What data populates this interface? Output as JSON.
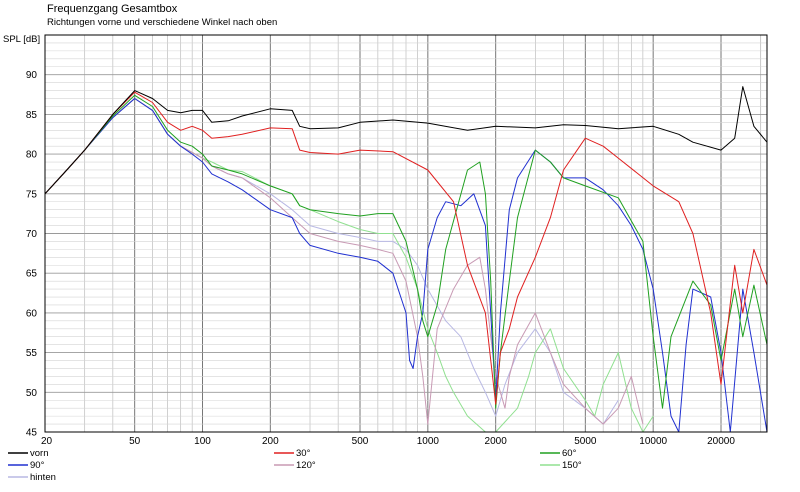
{
  "chart_data": {
    "type": "line",
    "title": "Frequenzgang Gesamtbox",
    "subtitle": "Richtungen vorne und verschiedene Winkel nach oben",
    "ylabel": "SPL [dB]",
    "xlabel": "",
    "x_scale": "log",
    "xlim": [
      20,
      32000
    ],
    "ylim": [
      45,
      95
    ],
    "grid": true,
    "x_ticks": [
      20,
      50,
      100,
      200,
      500,
      1000,
      2000,
      5000,
      10000,
      20000
    ],
    "x_tick_labels": [
      "20",
      "50",
      "100",
      "200",
      "500",
      "1000",
      "2000",
      "5000",
      "10000",
      "20000"
    ],
    "y_ticks": [
      45,
      50,
      55,
      60,
      65,
      70,
      75,
      80,
      85,
      90
    ],
    "y_tick_labels": [
      "45",
      "50",
      "55",
      "60",
      "65",
      "70",
      "75",
      "80",
      "85",
      "90"
    ],
    "legend_position": "bottom",
    "series": [
      {
        "name": "vorn",
        "color": "#000000",
        "x": [
          20,
          25,
          30,
          40,
          50,
          60,
          70,
          80,
          90,
          100,
          110,
          130,
          150,
          200,
          250,
          270,
          300,
          400,
          500,
          700,
          1000,
          1500,
          2000,
          3000,
          4000,
          5000,
          7000,
          10000,
          13000,
          15000,
          20000,
          23000,
          25000,
          28000,
          32000
        ],
        "y": [
          75,
          78,
          80.5,
          85,
          88,
          87,
          85.5,
          85.2,
          85.5,
          85.5,
          84,
          84.2,
          84.8,
          85.7,
          85.5,
          83.5,
          83.2,
          83.3,
          84,
          84.3,
          83.9,
          83,
          83.5,
          83.3,
          83.7,
          83.6,
          83.2,
          83.5,
          82.5,
          81.5,
          80.5,
          82,
          88.5,
          83.5,
          81.5
        ]
      },
      {
        "name": "30°",
        "color": "#e02020",
        "x": [
          20,
          25,
          30,
          40,
          50,
          60,
          70,
          80,
          90,
          100,
          110,
          130,
          150,
          200,
          250,
          270,
          300,
          400,
          500,
          700,
          1000,
          1300,
          1500,
          1800,
          2000,
          2100,
          2300,
          2500,
          3000,
          3500,
          4000,
          5000,
          6000,
          7000,
          10000,
          13000,
          15000,
          18000,
          20000,
          23000,
          25000,
          28000,
          32000
        ],
        "y": [
          75,
          78,
          80.5,
          85,
          87.8,
          86.5,
          84,
          83,
          83.5,
          83,
          82,
          82.2,
          82.5,
          83.3,
          83.2,
          80.5,
          80.2,
          80,
          80.5,
          80.3,
          78,
          74,
          66,
          60,
          48.5,
          55,
          58,
          62,
          67,
          72,
          78,
          82,
          81,
          79.5,
          76,
          74,
          70,
          60,
          51,
          66,
          60,
          68,
          63.5
        ]
      },
      {
        "name": "60°",
        "color": "#20a020",
        "x": [
          20,
          25,
          30,
          40,
          50,
          60,
          70,
          80,
          90,
          100,
          110,
          130,
          150,
          200,
          250,
          270,
          300,
          400,
          500,
          600,
          700,
          800,
          900,
          950,
          1000,
          1100,
          1200,
          1500,
          1700,
          1800,
          1900,
          2000,
          2100,
          2300,
          2500,
          3000,
          3500,
          4000,
          5000,
          7000,
          9000,
          10000,
          11000,
          12000,
          15000,
          18000,
          20000,
          23000,
          25000,
          28000,
          32000
        ],
        "y": [
          75,
          78,
          80.5,
          84.8,
          87.4,
          86,
          83,
          81.5,
          81,
          80,
          78.5,
          78,
          77.5,
          76,
          75,
          73.5,
          73,
          72.5,
          72.2,
          72.5,
          72.5,
          69,
          63,
          59,
          57,
          61,
          68,
          78,
          79,
          75,
          64,
          48,
          55,
          64,
          72,
          80.5,
          79,
          77,
          76,
          74.5,
          69,
          57,
          48,
          57,
          64,
          61,
          54,
          63,
          57,
          63.5,
          56
        ]
      },
      {
        "name": "90°",
        "color": "#2030d0",
        "x": [
          20,
          25,
          30,
          40,
          50,
          60,
          70,
          80,
          90,
          100,
          110,
          130,
          150,
          200,
          250,
          270,
          300,
          400,
          500,
          600,
          700,
          800,
          830,
          860,
          900,
          950,
          1000,
          1100,
          1200,
          1400,
          1600,
          1800,
          1900,
          2000,
          2100,
          2300,
          2500,
          3000,
          3500,
          4000,
          5000,
          6000,
          7000,
          8000,
          9000,
          10000,
          11000,
          12000,
          13000,
          14000,
          15000,
          18000,
          20000,
          22000,
          25000,
          28000,
          32000
        ],
        "y": [
          75,
          78,
          80.5,
          84.6,
          87,
          85.5,
          82.5,
          81,
          80,
          79,
          77.5,
          76.5,
          75.5,
          73,
          72,
          70,
          68.5,
          67.5,
          67,
          66.5,
          65,
          60,
          54,
          53,
          57,
          60,
          68,
          72,
          74,
          73.5,
          75,
          71,
          60,
          49,
          60,
          73,
          77,
          80.5,
          79,
          77,
          77,
          75.5,
          73.5,
          71,
          68,
          63,
          55,
          47,
          45,
          56,
          63,
          62,
          55,
          45,
          63,
          55,
          45
        ]
      },
      {
        "name": "120°",
        "color": "#c89ab4",
        "x": [
          20,
          25,
          30,
          40,
          50,
          60,
          70,
          80,
          90,
          100,
          110,
          130,
          150,
          200,
          250,
          300,
          400,
          500,
          600,
          700,
          800,
          900,
          950,
          1000,
          1100,
          1300,
          1500,
          1700,
          1800,
          1900,
          2000,
          2100,
          2200,
          2300,
          2500,
          3000,
          3500,
          4000,
          5000,
          6000,
          7000,
          8000,
          9000
        ],
        "y": [
          75,
          78,
          80.5,
          84.6,
          87,
          85.5,
          82.5,
          81,
          80.2,
          79.5,
          78.5,
          77.5,
          77,
          74.5,
          72,
          70,
          69,
          68.5,
          68,
          67.5,
          64,
          57,
          52,
          46,
          58,
          63,
          66,
          67,
          63,
          57,
          52,
          50,
          48,
          52,
          56,
          60,
          55,
          51,
          48,
          46,
          48,
          52,
          46
        ]
      },
      {
        "name": "150°",
        "color": "#90e090",
        "x": [
          20,
          25,
          30,
          40,
          50,
          60,
          70,
          80,
          90,
          100,
          110,
          130,
          150,
          200,
          250,
          270,
          300,
          400,
          500,
          600,
          700,
          800,
          900,
          1000,
          1100,
          1200,
          1300,
          1500,
          1800,
          2000,
          2500,
          2800,
          3000,
          3500,
          4000,
          5000,
          5500,
          6000,
          7000,
          8000,
          9000,
          10000
        ],
        "y": [
          75,
          78,
          80.5,
          84.6,
          87,
          85.5,
          82.5,
          81,
          80.2,
          79.5,
          79,
          78,
          77.8,
          76,
          75,
          73.5,
          73,
          71.5,
          70.5,
          70,
          70,
          67,
          63,
          58,
          55,
          52,
          50,
          47,
          45,
          45,
          48,
          52,
          55,
          58,
          53,
          49,
          47,
          51,
          55,
          48,
          45,
          47
        ]
      },
      {
        "name": "hinten",
        "color": "#b8b8e4",
        "x": [
          20,
          25,
          30,
          40,
          50,
          60,
          70,
          80,
          90,
          100,
          110,
          130,
          150,
          200,
          250,
          300,
          400,
          500,
          600,
          700,
          800,
          900,
          1000,
          1200,
          1400,
          1600,
          1800,
          2000,
          2200,
          2500,
          3000,
          3500,
          4000,
          5000,
          6000,
          7000
        ],
        "y": [
          75,
          78,
          80.5,
          84.6,
          87,
          85.5,
          82.5,
          81,
          80.2,
          79.5,
          78.5,
          77.5,
          77,
          75,
          73,
          71,
          70,
          69.5,
          69,
          69,
          68,
          66,
          63,
          59,
          57,
          53,
          50,
          47,
          51,
          55,
          58,
          55,
          50,
          48,
          46,
          49
        ]
      }
    ]
  }
}
